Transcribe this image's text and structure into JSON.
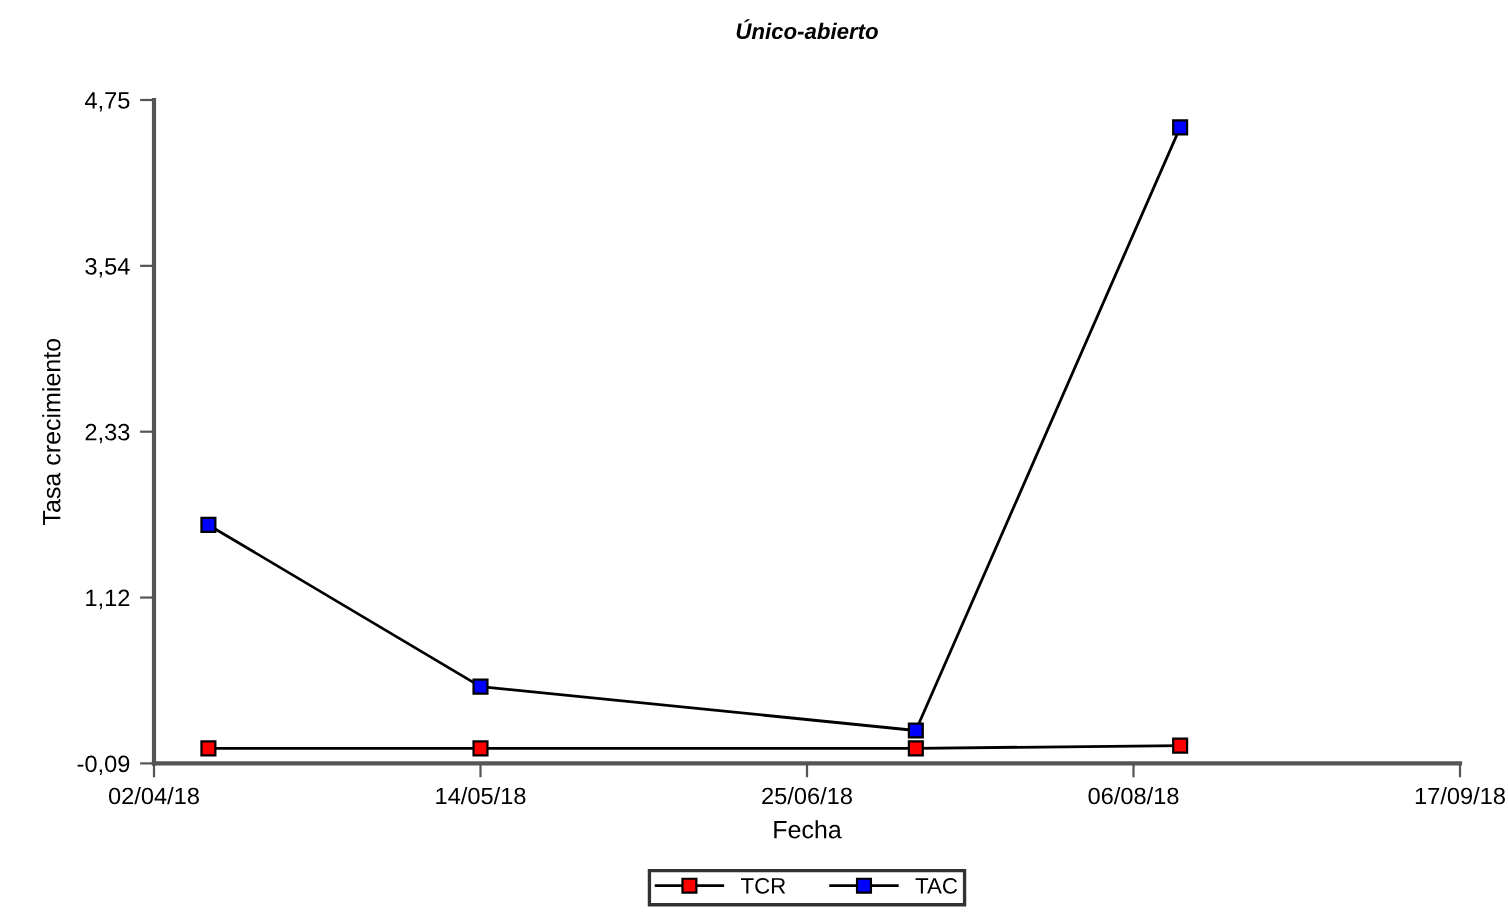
{
  "chart_data": {
    "type": "line",
    "title": "Único-abierto",
    "xlabel": "Fecha",
    "ylabel": "Tasa crecimiento",
    "x": [
      "2018-04-09",
      "2018-05-14",
      "2018-07-09",
      "2018-08-12"
    ],
    "series": [
      {
        "name": "TCR",
        "color": "#ff0000",
        "values": [
          0.02,
          0.02,
          0.02,
          0.04
        ]
      },
      {
        "name": "TAC",
        "color": "#0000ff",
        "values": [
          1.65,
          0.47,
          0.15,
          4.55
        ]
      }
    ],
    "xlim": [
      "2018-04-02",
      "2018-09-17"
    ],
    "xticks": [
      {
        "value": "2018-04-02",
        "label": "02/04/18"
      },
      {
        "value": "2018-05-14",
        "label": "14/05/18"
      },
      {
        "value": "2018-06-25",
        "label": "25/06/18"
      },
      {
        "value": "2018-08-06",
        "label": "06/08/18"
      },
      {
        "value": "2018-09-17",
        "label": "17/09/18"
      }
    ],
    "ylim": [
      -0.09,
      4.75
    ],
    "yticks": [
      {
        "value": -0.09,
        "label": "-0,09"
      },
      {
        "value": 1.12,
        "label": "1,12"
      },
      {
        "value": 2.33,
        "label": "2,33"
      },
      {
        "value": 3.54,
        "label": "3,54"
      },
      {
        "value": 4.75,
        "label": "4,75"
      }
    ],
    "grid": false,
    "legend": "bottom",
    "marker": "square",
    "line_style": "solid"
  }
}
